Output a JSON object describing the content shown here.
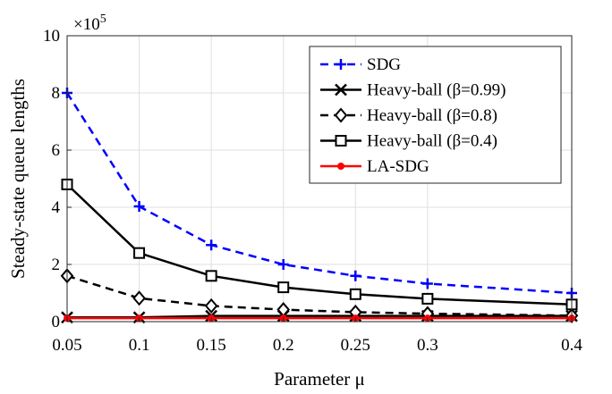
{
  "chart_data": {
    "type": "line",
    "xlabel": "Parameter μ",
    "ylabel": "Steady-state queue lengths",
    "y_multiplier": "×10",
    "y_exponent": "5",
    "x": [
      0.05,
      0.1,
      0.15,
      0.2,
      0.25,
      0.3,
      0.4
    ],
    "xlim": [
      0.05,
      0.4
    ],
    "ylim": [
      0,
      10
    ],
    "xticks": [
      "0.05",
      "0.1",
      "0.15",
      "0.2",
      "0.25",
      "0.3",
      "0.4"
    ],
    "yticks": [
      "0",
      "2",
      "4",
      "6",
      "8",
      "10"
    ],
    "grid": true,
    "legend_position": "top-right",
    "series": [
      {
        "name": "SDG",
        "values": [
          8.0,
          4.03,
          2.68,
          2.0,
          1.6,
          1.33,
          1.0
        ],
        "color": "#0000ff",
        "dash": "dashed",
        "marker": "plus"
      },
      {
        "name": "Heavy-ball (β=0.99)",
        "values": [
          0.15,
          0.15,
          0.2,
          0.2,
          0.2,
          0.2,
          0.2
        ],
        "color": "#000000",
        "dash": "solid",
        "marker": "x"
      },
      {
        "name": "Heavy-ball (β=0.8)",
        "values": [
          1.6,
          0.82,
          0.55,
          0.42,
          0.33,
          0.28,
          0.21
        ],
        "color": "#000000",
        "dash": "dashed",
        "marker": "diamond"
      },
      {
        "name": "Heavy-ball (β=0.4)",
        "values": [
          4.8,
          2.4,
          1.6,
          1.2,
          0.96,
          0.8,
          0.6
        ],
        "color": "#000000",
        "dash": "solid",
        "marker": "square"
      },
      {
        "name": "LA-SDG",
        "values": [
          0.12,
          0.12,
          0.12,
          0.12,
          0.12,
          0.12,
          0.12
        ],
        "color": "#ff0000",
        "dash": "solid",
        "marker": "dot"
      }
    ]
  }
}
